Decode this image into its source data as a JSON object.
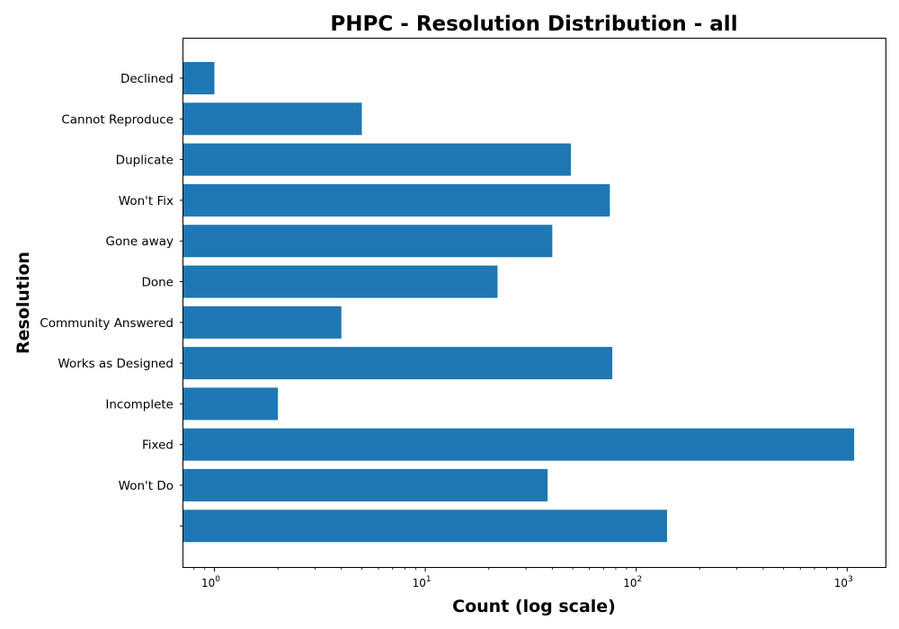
{
  "chart_data": {
    "type": "bar",
    "orientation": "horizontal",
    "title": "PHPC - Resolution Distribution - all",
    "xlabel": "Count (log scale)",
    "ylabel": "Resolution",
    "xscale": "log",
    "xlim": [
      0.74,
      1550
    ],
    "grid": false,
    "legend": "none",
    "bar_color": "#1f77b4",
    "categories": [
      "Declined",
      "Cannot Reproduce",
      "Duplicate",
      "Won't Fix",
      "Gone away",
      "Done",
      "Community Answered",
      "Works as Designed",
      "Incomplete",
      "Fixed",
      "Won't Do",
      ""
    ],
    "values": [
      1,
      5,
      49,
      75,
      40,
      22,
      4,
      77,
      2,
      1080,
      38,
      140
    ],
    "xticks": [
      {
        "base": "10",
        "exp": "0",
        "value": 1
      },
      {
        "base": "10",
        "exp": "1",
        "value": 10
      },
      {
        "base": "10",
        "exp": "2",
        "value": 100
      },
      {
        "base": "10",
        "exp": "3",
        "value": 1000
      }
    ]
  }
}
